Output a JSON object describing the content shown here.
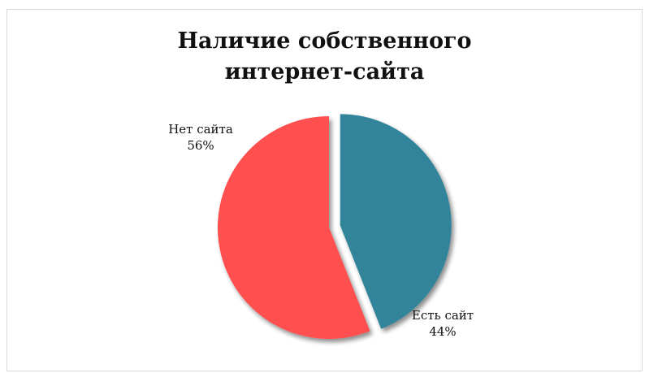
{
  "chart_data": {
    "type": "pie",
    "title_lines": [
      "Наличие собственного",
      "интернет-сайта"
    ],
    "slices": [
      {
        "label": "Есть сайт",
        "value": 44,
        "value_label": "44%",
        "color": "#31849b",
        "exploded": true
      },
      {
        "label": "Нет сайта",
        "value": 56,
        "value_label": "56%",
        "color": "#ff5050",
        "exploded": false
      }
    ],
    "legend": "none"
  }
}
